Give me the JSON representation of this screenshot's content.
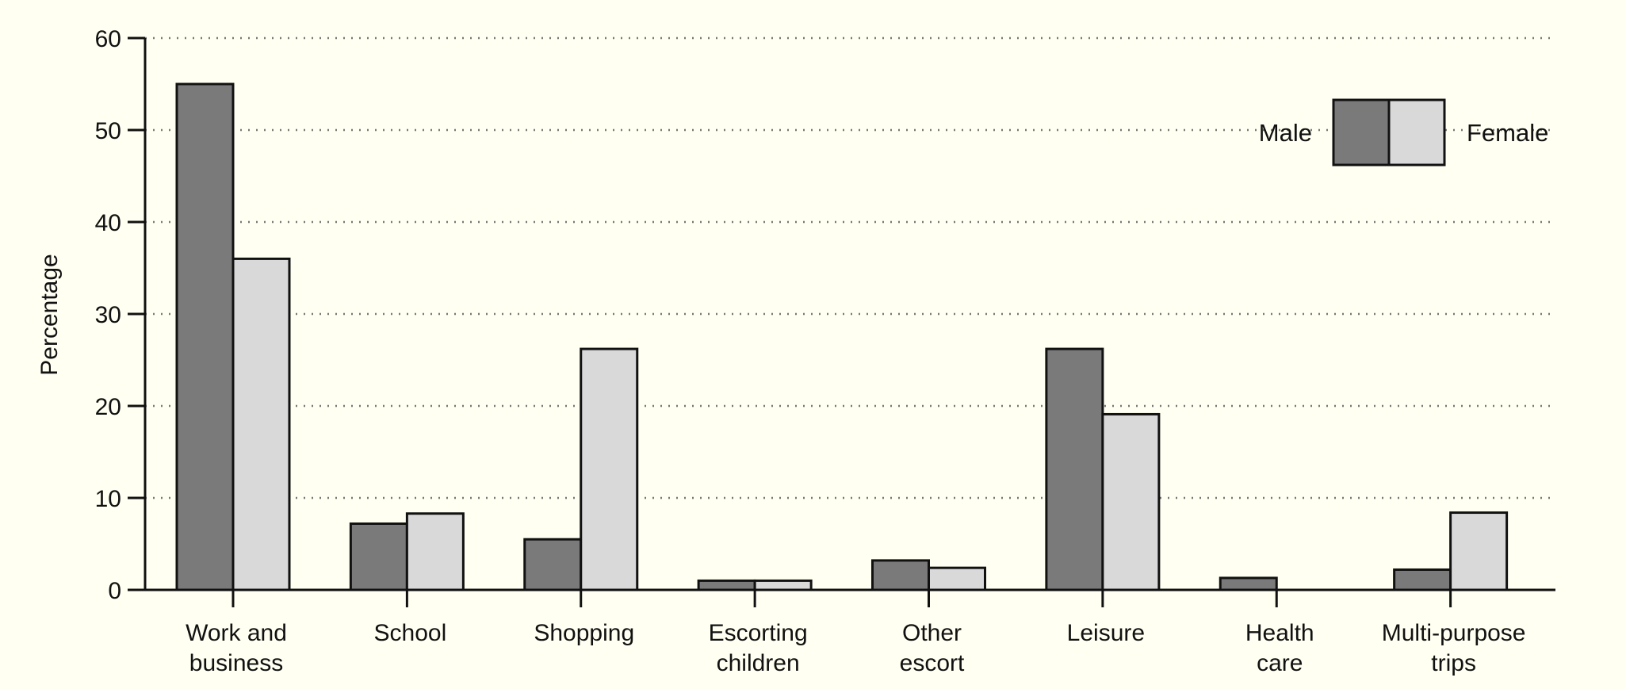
{
  "chart_data": {
    "type": "bar",
    "ylabel": "Percentage",
    "ylim": [
      0,
      60
    ],
    "yticks": [
      0,
      10,
      20,
      30,
      40,
      50,
      60
    ],
    "grid": "horizontal dotted",
    "legend_position": "top-right",
    "categories": [
      [
        "Work and",
        "business"
      ],
      [
        "School"
      ],
      [
        "Shopping"
      ],
      [
        "Escorting",
        "children"
      ],
      [
        "Other",
        "escort"
      ],
      [
        "Leisure"
      ],
      [
        "Health",
        "care"
      ],
      [
        "Multi-purpose",
        "trips"
      ]
    ],
    "series": [
      {
        "name": "Male",
        "color": "#7a7a7a",
        "values": [
          55,
          7.2,
          5.5,
          1.0,
          3.2,
          26.2,
          1.3,
          2.2
        ]
      },
      {
        "name": "Female",
        "color": "#d9d9d9",
        "values": [
          36,
          8.3,
          26.2,
          1.0,
          2.4,
          19.1,
          0,
          8.4
        ]
      }
    ]
  }
}
